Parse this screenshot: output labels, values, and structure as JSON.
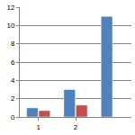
{
  "chart_data": {
    "type": "bar",
    "categories": [
      "1",
      "2",
      null
    ],
    "series": [
      {
        "color": "#4f81bd",
        "values": [
          1,
          3,
          11
        ]
      },
      {
        "color": "#c0504d",
        "values": [
          0.7,
          1.3,
          null
        ]
      }
    ],
    "ylim": [
      0,
      12
    ],
    "yticks": [
      0,
      2,
      4,
      6,
      8,
      10,
      12
    ],
    "grid": true
  }
}
